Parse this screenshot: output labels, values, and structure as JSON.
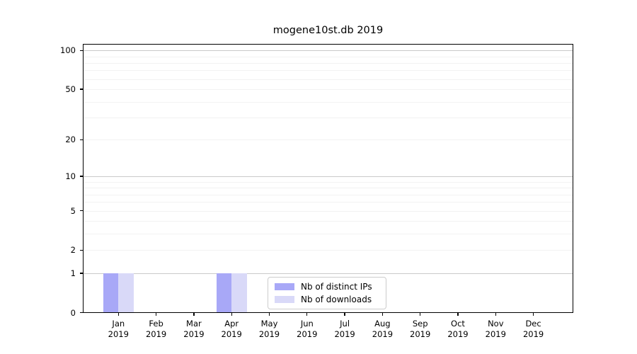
{
  "chart_data": {
    "type": "bar",
    "title": "mogene10st.db 2019",
    "categories": [
      "Jan 2019",
      "Feb 2019",
      "Mar 2019",
      "Apr 2019",
      "May 2019",
      "Jun 2019",
      "Jul 2019",
      "Aug 2019",
      "Sep 2019",
      "Oct 2019",
      "Nov 2019",
      "Dec 2019"
    ],
    "series": [
      {
        "name": "Nb of distinct IPs",
        "color": "#a8a8f7",
        "values": [
          1,
          0,
          0,
          1,
          0,
          0,
          0,
          0,
          0,
          0,
          0,
          0
        ]
      },
      {
        "name": "Nb of downloads",
        "color": "#d9d9f8",
        "values": [
          1,
          0,
          0,
          1,
          0,
          0,
          0,
          0,
          0,
          0,
          0,
          0
        ]
      }
    ],
    "xlabel": "",
    "ylabel": "",
    "yscale": "log(1+x)",
    "ylim": [
      0,
      113
    ],
    "y_ticks": [
      0,
      1,
      2,
      5,
      10,
      20,
      50,
      100
    ],
    "grid_major": [
      1,
      10,
      100
    ],
    "grid_minor": [
      2,
      3,
      4,
      5,
      6,
      7,
      8,
      9,
      20,
      30,
      40,
      50,
      60,
      70,
      80,
      90
    ],
    "grid": "horizontal",
    "legend_position": "inside bottom-center"
  }
}
